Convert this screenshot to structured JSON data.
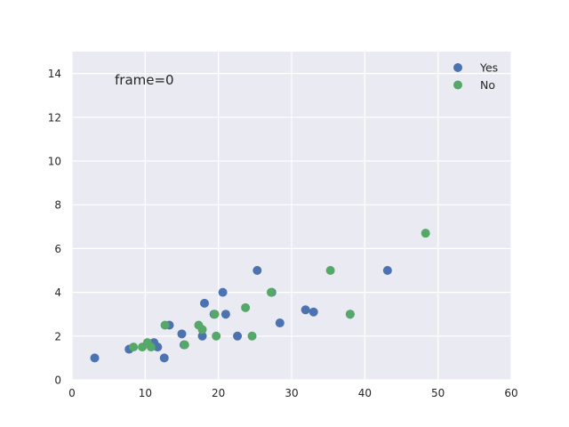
{
  "chart_data": {
    "type": "scatter",
    "title": "",
    "xlabel": "",
    "ylabel": "",
    "xlim": [
      0,
      60
    ],
    "ylim": [
      0,
      15
    ],
    "xticks": [
      0,
      10,
      20,
      30,
      40,
      50,
      60
    ],
    "yticks": [
      0,
      2,
      4,
      6,
      8,
      10,
      12,
      14
    ],
    "grid": true,
    "legend_position": "top-right",
    "annotation": "frame=0",
    "background_color": "#eaeaf2",
    "grid_color": "#ffffff",
    "series": [
      {
        "name": "Yes",
        "color": "#4c72b0",
        "points": [
          {
            "x": 3.1,
            "y": 1.0
          },
          {
            "x": 7.8,
            "y": 1.4
          },
          {
            "x": 11.2,
            "y": 1.7
          },
          {
            "x": 11.7,
            "y": 1.5
          },
          {
            "x": 12.6,
            "y": 1.0
          },
          {
            "x": 13.3,
            "y": 2.5
          },
          {
            "x": 15.0,
            "y": 2.1
          },
          {
            "x": 15.3,
            "y": 1.6
          },
          {
            "x": 17.8,
            "y": 2.0
          },
          {
            "x": 18.1,
            "y": 3.5
          },
          {
            "x": 19.4,
            "y": 3.0
          },
          {
            "x": 20.6,
            "y": 4.0
          },
          {
            "x": 21.0,
            "y": 3.0
          },
          {
            "x": 22.6,
            "y": 2.0
          },
          {
            "x": 25.3,
            "y": 5.0
          },
          {
            "x": 27.3,
            "y": 4.0
          },
          {
            "x": 28.4,
            "y": 2.6
          },
          {
            "x": 31.9,
            "y": 3.2
          },
          {
            "x": 33.0,
            "y": 3.1
          },
          {
            "x": 38.0,
            "y": 3.0
          },
          {
            "x": 43.1,
            "y": 5.0
          }
        ]
      },
      {
        "name": "No",
        "color": "#55a868",
        "points": [
          {
            "x": 8.4,
            "y": 1.5
          },
          {
            "x": 9.6,
            "y": 1.5
          },
          {
            "x": 10.3,
            "y": 1.7
          },
          {
            "x": 10.8,
            "y": 1.5
          },
          {
            "x": 12.7,
            "y": 2.5
          },
          {
            "x": 15.4,
            "y": 1.6
          },
          {
            "x": 17.3,
            "y": 2.5
          },
          {
            "x": 17.8,
            "y": 2.3
          },
          {
            "x": 19.5,
            "y": 3.0
          },
          {
            "x": 19.7,
            "y": 2.0
          },
          {
            "x": 23.7,
            "y": 3.3
          },
          {
            "x": 24.6,
            "y": 2.0
          },
          {
            "x": 27.2,
            "y": 4.0
          },
          {
            "x": 35.3,
            "y": 5.0
          },
          {
            "x": 38.0,
            "y": 3.0
          },
          {
            "x": 48.3,
            "y": 6.7
          }
        ]
      }
    ]
  }
}
